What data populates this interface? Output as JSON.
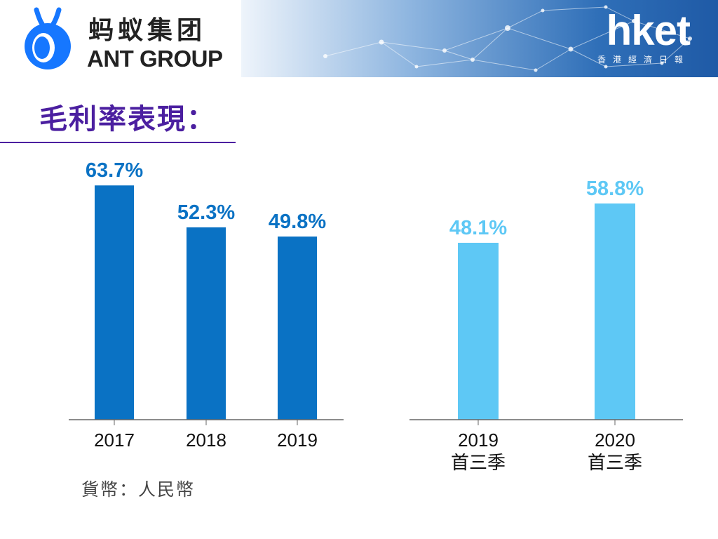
{
  "brand": {
    "ant_cn": "蚂蚁集团",
    "ant_en": "ANT GROUP",
    "hket_wordmark": "hket",
    "hket_sub": "香港經濟日報"
  },
  "title": "毛利率表現：",
  "currency_note": "貨幣：人民幣",
  "colors": {
    "annual_bar": "#0a72c4",
    "quarter_bar": "#5ec8f5",
    "title": "#4b1fa0",
    "axis": "#666666"
  },
  "chart_data": [
    {
      "type": "bar",
      "title": "",
      "xlabel": "",
      "ylabel": "",
      "ylim": [
        0,
        70
      ],
      "grid": false,
      "categories": [
        [
          "2017"
        ],
        [
          "2018"
        ],
        [
          "2019"
        ]
      ],
      "values": [
        63.7,
        52.3,
        49.8
      ],
      "value_labels": [
        "63.7%",
        "52.3%",
        "49.8%"
      ],
      "color": "#0a72c4"
    },
    {
      "type": "bar",
      "title": "",
      "xlabel": "",
      "ylabel": "",
      "ylim": [
        0,
        70
      ],
      "grid": false,
      "categories": [
        [
          "2019",
          "首三季"
        ],
        [
          "2020",
          "首三季"
        ]
      ],
      "values": [
        48.1,
        58.8
      ],
      "value_labels": [
        "48.1%",
        "58.8%"
      ],
      "color": "#5ec8f5"
    }
  ]
}
